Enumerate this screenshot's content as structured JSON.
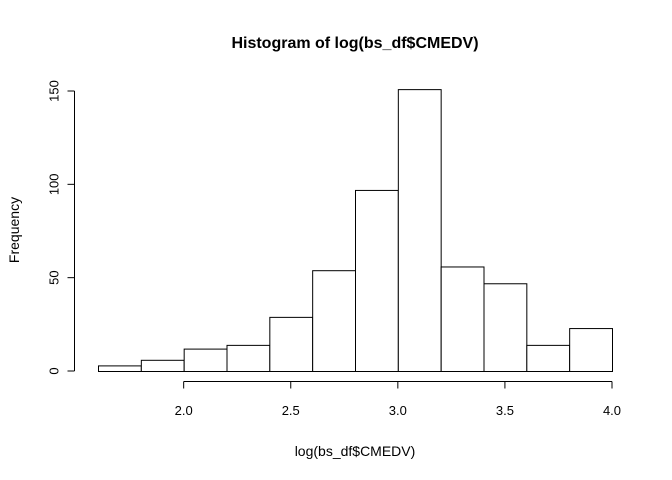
{
  "chart_data": {
    "type": "bar",
    "title": "Histogram of log(bs_df$CMEDV)",
    "xlabel": "log(bs_df$CMEDV)",
    "ylabel": "Frequency",
    "bin_edges": [
      1.6,
      1.8,
      2.0,
      2.2,
      2.4,
      2.6,
      2.8,
      3.0,
      3.2,
      3.4,
      3.6,
      3.8,
      4.0
    ],
    "values": [
      3,
      6,
      12,
      14,
      29,
      54,
      97,
      151,
      56,
      47,
      14,
      23
    ],
    "xlim": [
      1.6,
      4.0
    ],
    "ylim": [
      0,
      150
    ],
    "x_ticks": [
      2.0,
      2.5,
      3.0,
      3.5,
      4.0
    ],
    "x_tick_labels": [
      "2.0",
      "2.5",
      "3.0",
      "3.5",
      "4.0"
    ],
    "y_ticks": [
      0,
      50,
      100,
      150
    ],
    "y_tick_labels": [
      "0",
      "50",
      "100",
      "150"
    ],
    "grid": false,
    "colors": {
      "bar_fill": "#ffffff",
      "bar_stroke": "#000000"
    }
  }
}
